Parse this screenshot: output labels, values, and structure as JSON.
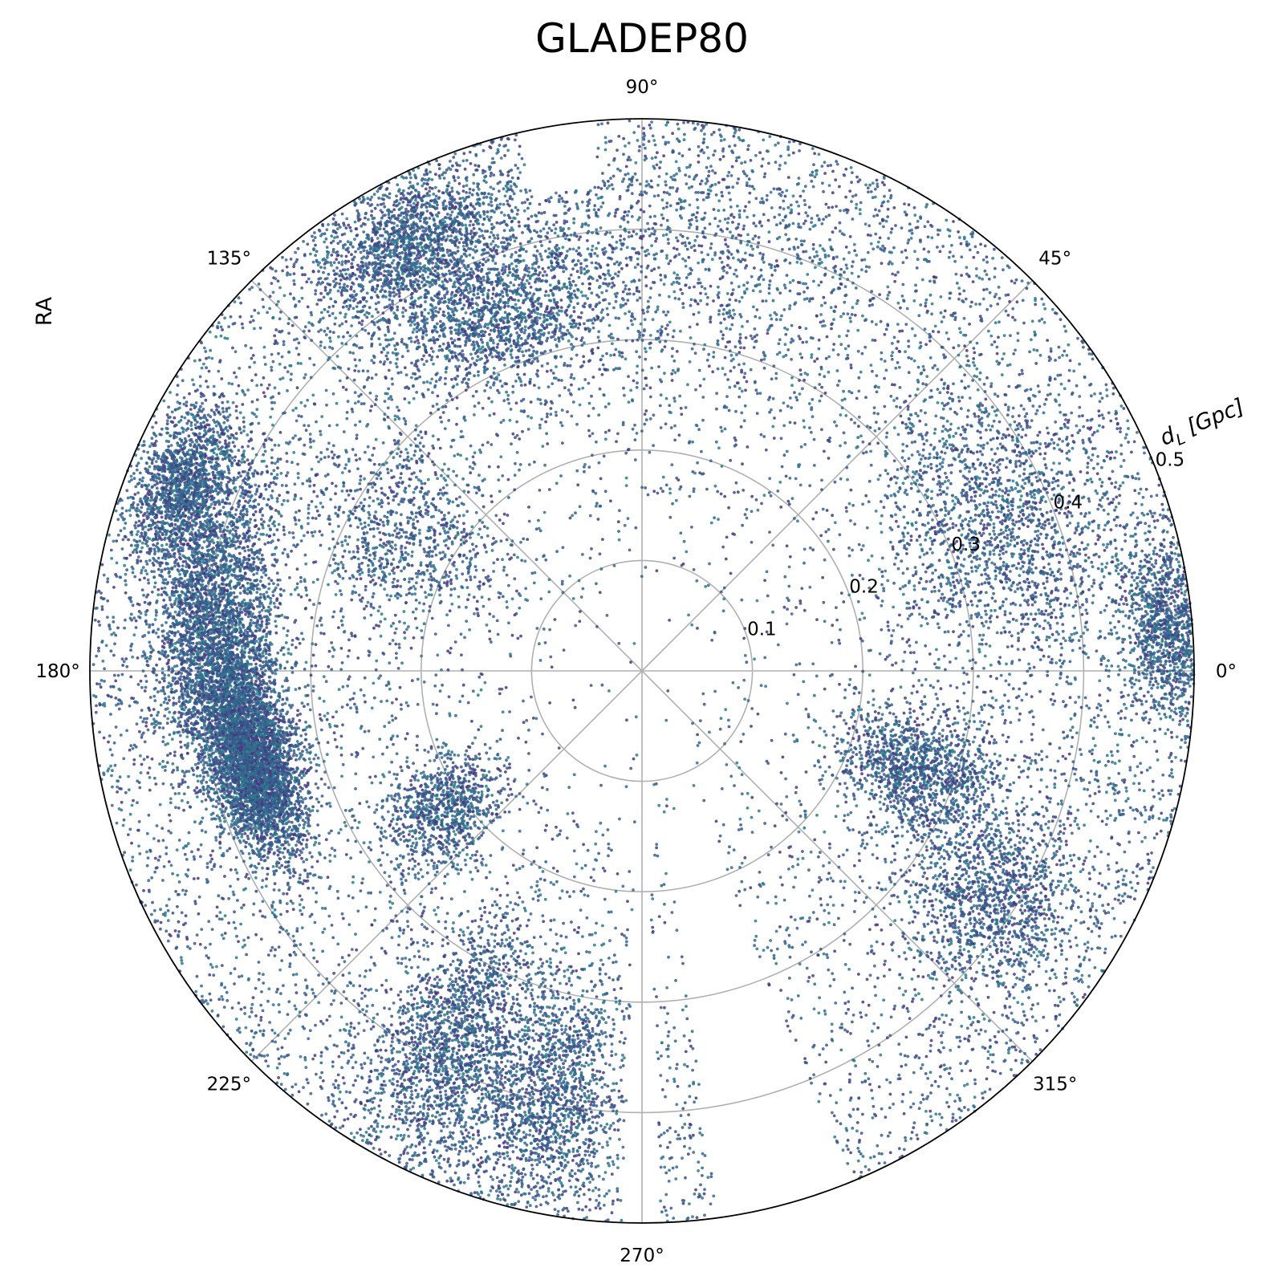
{
  "chart_data": {
    "type": "scatter",
    "projection": "polar",
    "title": "GLADEP80",
    "theta_label": "RA",
    "r_label_main": "d",
    "r_label_sub": "L",
    "r_label_tail": " [Gpc]",
    "theta_ticks": [
      "0°",
      "45°",
      "90°",
      "135°",
      "180°",
      "225°",
      "270°",
      "315°"
    ],
    "theta_tick_values": [
      0,
      45,
      90,
      135,
      180,
      225,
      270,
      315
    ],
    "r_ticks": [
      "0.1",
      "0.2",
      "0.3",
      "0.4",
      "0.5"
    ],
    "r_tick_values": [
      0.1,
      0.2,
      0.3,
      0.4,
      0.5
    ],
    "rlim": [
      0,
      0.5
    ],
    "grid": true,
    "point_colors": [
      "#3b528b",
      "#31688e",
      "#2c7a8c",
      "#46397f",
      "#355f8d"
    ],
    "clusters": [
      {
        "theta": 172,
        "r": 0.4,
        "spread_t": 10,
        "spread_r": 0.025,
        "weight": 1.6
      },
      {
        "theta": 187,
        "r": 0.37,
        "spread_t": 9,
        "spread_r": 0.02,
        "weight": 1.8
      },
      {
        "theta": 195,
        "r": 0.36,
        "spread_t": 6,
        "spread_r": 0.02,
        "weight": 1.5
      },
      {
        "theta": 158,
        "r": 0.45,
        "spread_t": 5,
        "spread_r": 0.02,
        "weight": 1.0
      },
      {
        "theta": 118,
        "r": 0.44,
        "spread_t": 6,
        "spread_r": 0.03,
        "weight": 1.1
      },
      {
        "theta": 112,
        "r": 0.35,
        "spread_t": 8,
        "spread_r": 0.03,
        "weight": 0.8
      },
      {
        "theta": 243,
        "r": 0.38,
        "spread_t": 5,
        "spread_r": 0.06,
        "weight": 1.2
      },
      {
        "theta": 258,
        "r": 0.4,
        "spread_t": 5,
        "spread_r": 0.06,
        "weight": 1.0
      },
      {
        "theta": 22,
        "r": 0.35,
        "spread_t": 10,
        "spread_r": 0.05,
        "weight": 1.0
      },
      {
        "theta": 340,
        "r": 0.27,
        "spread_t": 6,
        "spread_r": 0.04,
        "weight": 0.9
      },
      {
        "theta": 327,
        "r": 0.38,
        "spread_t": 6,
        "spread_r": 0.04,
        "weight": 0.8
      },
      {
        "theta": 5,
        "r": 0.48,
        "spread_t": 5,
        "spread_r": 0.02,
        "weight": 0.8
      },
      {
        "theta": 215,
        "r": 0.22,
        "spread_t": 6,
        "spread_r": 0.03,
        "weight": 0.6
      },
      {
        "theta": 150,
        "r": 0.25,
        "spread_t": 10,
        "spread_r": 0.05,
        "weight": 0.6
      },
      {
        "theta": 90,
        "r": 0.4,
        "spread_t": 20,
        "spread_r": 0.08,
        "weight": 1.0
      }
    ],
    "empty_wedges": [
      {
        "from": 278,
        "to": 292,
        "rmin": 0.15
      },
      {
        "from": 268,
        "to": 272,
        "rmin": 0.1
      },
      {
        "from": 95,
        "to": 103,
        "rmin": 0.44
      }
    ]
  }
}
